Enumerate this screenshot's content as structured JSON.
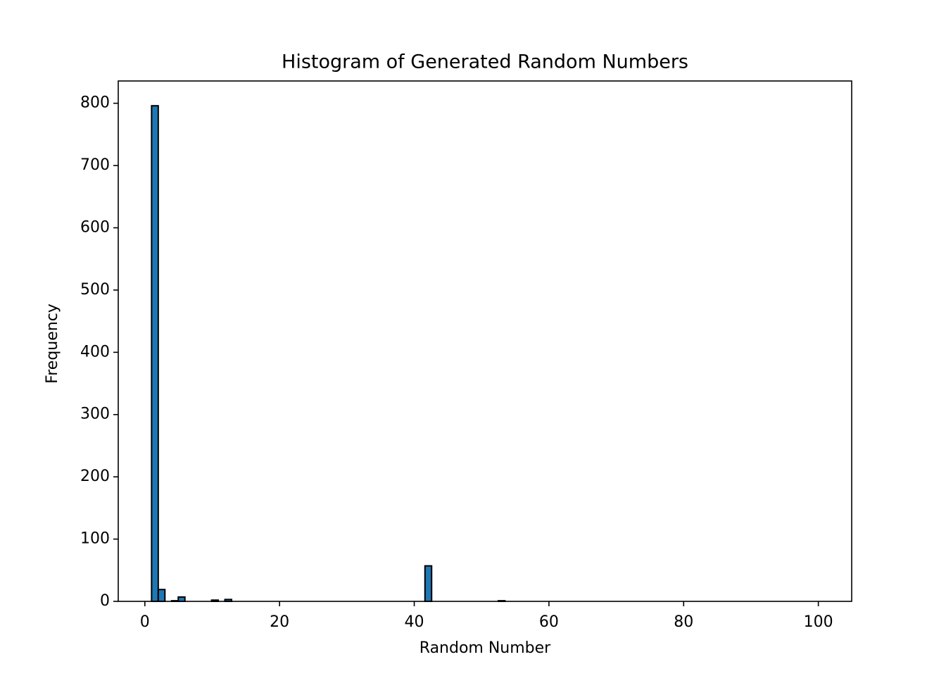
{
  "chart_data": {
    "type": "histogram",
    "title": "Histogram of Generated Random Numbers",
    "x_label": "Random Number",
    "y_label": "Frequency",
    "bins": [
      1,
      1.99,
      2.98,
      3.97,
      4.96,
      5.95,
      6.94,
      7.93,
      8.92,
      9.91,
      10.9,
      11.89,
      12.88,
      13.87,
      14.86,
      15.85,
      16.84,
      17.83,
      18.82,
      19.81,
      20.8,
      21.79,
      22.78,
      23.77,
      24.76,
      25.75,
      26.74,
      27.73,
      28.72,
      29.71,
      30.7,
      31.69,
      32.68,
      33.67,
      34.66,
      35.65,
      36.64,
      37.63,
      38.62,
      39.61,
      40.6,
      41.59,
      42.58,
      43.57,
      44.56,
      45.55,
      46.54,
      47.53,
      48.52,
      49.51,
      50.5,
      51.49,
      52.48,
      53.47,
      54.46,
      55.45,
      56.44,
      57.43,
      58.42,
      59.41,
      60.4,
      61.39,
      62.38,
      63.37,
      64.36,
      65.35,
      66.34,
      67.33,
      68.32,
      69.31,
      70.3,
      71.29,
      72.28,
      73.27,
      74.26,
      75.25,
      76.24,
      77.23,
      78.22,
      79.21,
      80.2,
      81.19,
      82.18,
      83.17,
      84.16,
      85.15,
      86.14,
      87.13,
      88.12,
      89.11,
      90.1,
      91.09,
      92.08,
      93.07,
      94.06,
      95.05,
      96.04,
      97.03,
      98.02,
      99.01,
      100
    ],
    "values": [
      796,
      19,
      0,
      1,
      7,
      0,
      0,
      0,
      0,
      2,
      0,
      3,
      0,
      0,
      0,
      0,
      0,
      0,
      0,
      0,
      0,
      0,
      0,
      0,
      0,
      0,
      0,
      0,
      0,
      0,
      0,
      0,
      0,
      0,
      0,
      0,
      0,
      0,
      0,
      0,
      0,
      57,
      0,
      0,
      0,
      0,
      0,
      0,
      0,
      0,
      0,
      0,
      1,
      0,
      0,
      0,
      0,
      0,
      0,
      0,
      0,
      0,
      0,
      0,
      0,
      0,
      0,
      0,
      0,
      0,
      0,
      0,
      0,
      0,
      0,
      0,
      0,
      0,
      0,
      0,
      0,
      0,
      0,
      0,
      0,
      0,
      0,
      0,
      0,
      0,
      0,
      0,
      0,
      0,
      0,
      0,
      0,
      0,
      0,
      0
    ],
    "color": "#1f77b4",
    "edgecolor": "#000000",
    "xlim": [
      -3.95,
      104.95
    ],
    "xticks": [
      0,
      20,
      40,
      60,
      80,
      100
    ],
    "ylim": [
      0,
      835.8
    ],
    "yticks": [
      0,
      100,
      200,
      300,
      400,
      500,
      600,
      700,
      800
    ],
    "grid": false
  }
}
